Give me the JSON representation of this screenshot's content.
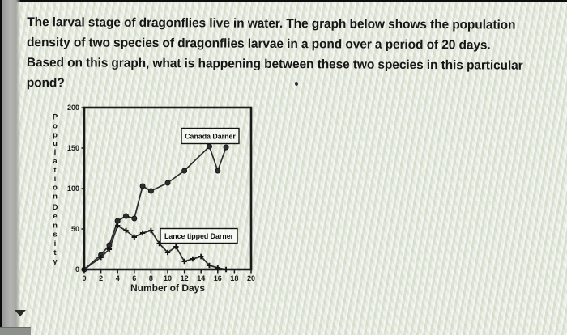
{
  "question": {
    "lines": [
      "The larval stage of dragonflies live in water. The graph below shows the population",
      "density of two species of dragonflies larvae in a pond over a period of 20 days.",
      "Based on this graph, what is happening between these two species in this particular",
      "pond?"
    ]
  },
  "chart_data": {
    "type": "line",
    "title": "",
    "xlabel": "Number of Days",
    "ylabel": "Population Density",
    "xlim": [
      0,
      20
    ],
    "ylim": [
      0,
      200
    ],
    "xticks": [
      0,
      2,
      4,
      6,
      8,
      10,
      12,
      14,
      16,
      18,
      20
    ],
    "yticks": [
      0,
      50,
      100,
      150,
      200
    ],
    "grid": false,
    "legend_position": "boxed labels inside plot area",
    "series": [
      {
        "name": "Canada Darner",
        "marker": "circle",
        "points": [
          [
            0,
            0
          ],
          [
            2,
            18
          ],
          [
            3,
            30
          ],
          [
            4,
            60
          ],
          [
            5,
            66
          ],
          [
            6,
            63
          ],
          [
            7,
            103
          ],
          [
            8,
            97
          ],
          [
            10,
            107
          ],
          [
            12,
            122
          ],
          [
            15,
            152
          ],
          [
            16,
            122
          ],
          [
            17,
            151
          ]
        ]
      },
      {
        "name": "Lance tipped Darner",
        "marker": "plus",
        "points": [
          [
            0,
            0
          ],
          [
            2,
            15
          ],
          [
            3,
            25
          ],
          [
            4,
            54
          ],
          [
            5,
            48
          ],
          [
            6,
            40
          ],
          [
            7,
            45
          ],
          [
            8,
            48
          ],
          [
            9,
            32
          ],
          [
            10,
            21
          ],
          [
            11,
            28
          ],
          [
            12,
            10
          ],
          [
            13,
            13
          ],
          [
            14,
            16
          ],
          [
            15,
            5
          ],
          [
            16,
            2
          ],
          [
            17,
            0
          ]
        ]
      }
    ]
  },
  "colors": {
    "background": "#e2e6db",
    "ink": "#1a1a1a",
    "line": "#2c2c2c",
    "left_band": "#a6a6a6",
    "bottom_bar": "#8d918c"
  }
}
